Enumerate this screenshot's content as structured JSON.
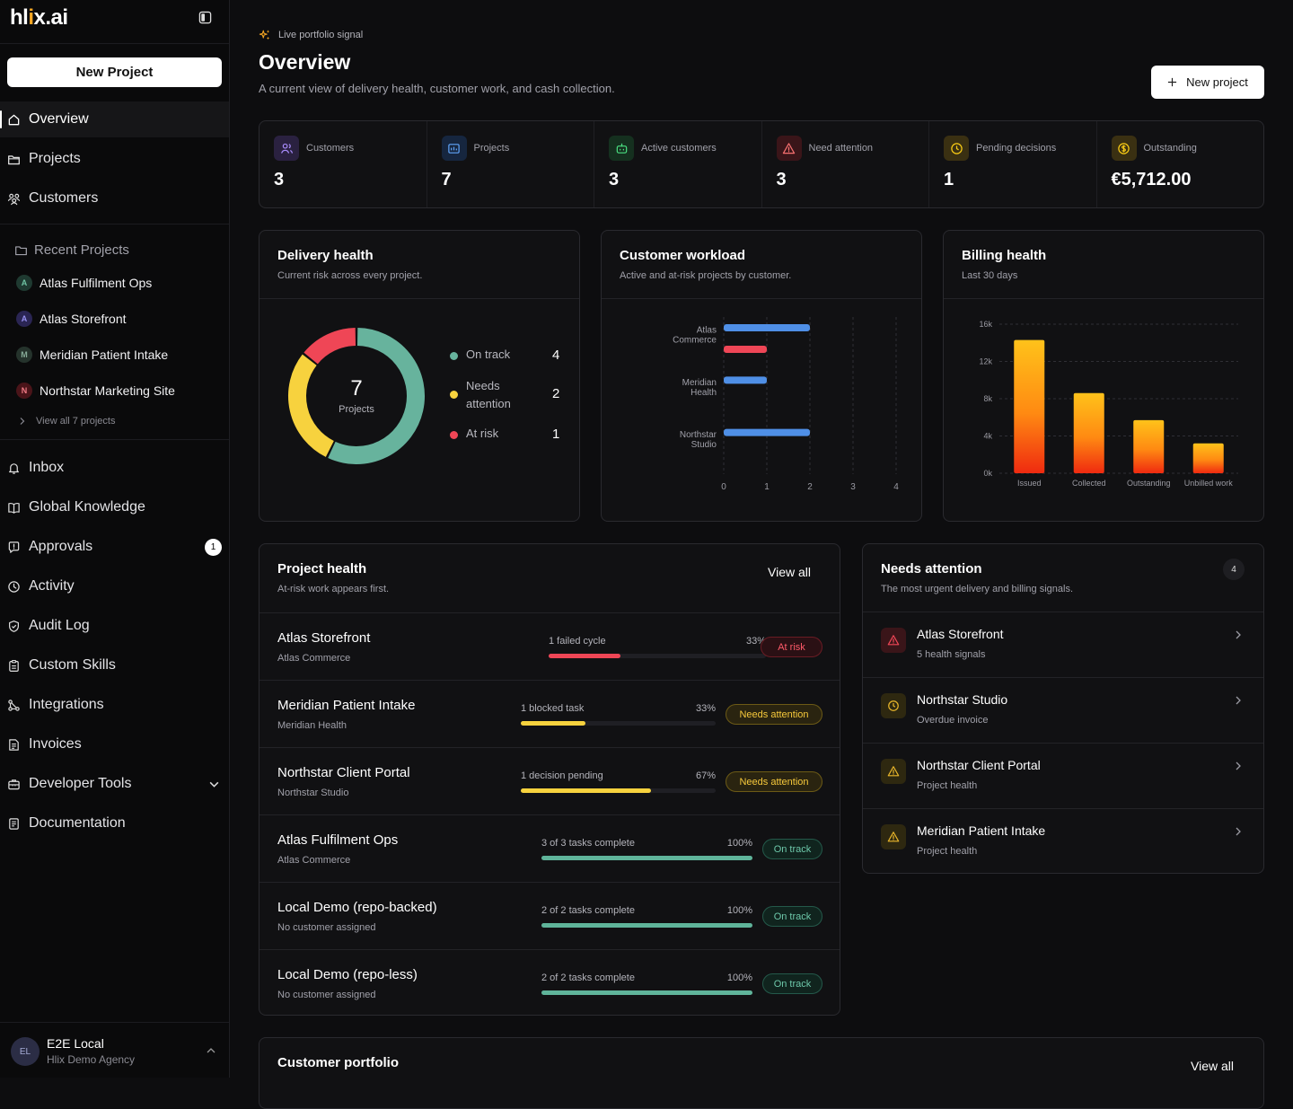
{
  "brand": {
    "logo_pre": "hl",
    "logo_dot": "i",
    "logo_post": "x.ai"
  },
  "sidebar": {
    "new_project_label": "New Project",
    "nav_top": [
      {
        "label": "Overview",
        "icon": "home-icon"
      },
      {
        "label": "Projects",
        "icon": "folder-icon"
      },
      {
        "label": "Customers",
        "icon": "users-icon"
      }
    ],
    "recent_heading": "Recent Projects",
    "recent": [
      {
        "initial": "A",
        "label": "Atlas Fulfilment Ops",
        "color": "#4b8a73"
      },
      {
        "initial": "A",
        "label": "Atlas Storefront",
        "color": "#6d62c9"
      },
      {
        "initial": "M",
        "label": "Meridian Patient Intake",
        "color": "#5d7d6f"
      },
      {
        "initial": "N",
        "label": "Northstar Marketing Site",
        "color": "#c8404b"
      }
    ],
    "view_all_projects": "View all 7 projects",
    "nav_bottom": [
      {
        "label": "Inbox",
        "icon": "bell-icon"
      },
      {
        "label": "Global Knowledge",
        "icon": "book-icon"
      },
      {
        "label": "Approvals",
        "icon": "approval-icon",
        "badge": "1"
      },
      {
        "label": "Activity",
        "icon": "clock-icon"
      },
      {
        "label": "Audit Log",
        "icon": "shield-icon"
      },
      {
        "label": "Custom Skills",
        "icon": "clipboard-icon"
      },
      {
        "label": "Integrations",
        "icon": "integrations-icon"
      },
      {
        "label": "Invoices",
        "icon": "invoice-icon"
      },
      {
        "label": "Developer Tools",
        "icon": "toolbox-icon"
      },
      {
        "label": "Documentation",
        "icon": "document-icon"
      }
    ],
    "user": {
      "initials": "EL",
      "name": "E2E Local",
      "org": "Hlix Demo Agency"
    }
  },
  "header": {
    "live_tag": "Live portfolio signal",
    "title": "Overview",
    "subtitle": "A current view of delivery health, customer work, and cash collection.",
    "new_project_label": "New project"
  },
  "kpis": [
    {
      "label": "Customers",
      "value": "3",
      "icon": "users-icon",
      "color": "#a78bfa"
    },
    {
      "label": "Projects",
      "value": "7",
      "icon": "folder-icon",
      "color": "#60a5fa"
    },
    {
      "label": "Active customers",
      "value": "3",
      "icon": "bot-icon",
      "color": "#4ade80"
    },
    {
      "label": "Need attention",
      "value": "3",
      "icon": "warning-icon",
      "color": "#f87171"
    },
    {
      "label": "Pending decisions",
      "value": "1",
      "icon": "clock-icon",
      "color": "#facc15"
    },
    {
      "label": "Outstanding",
      "value": "€5,712.00",
      "icon": "coin-icon",
      "color": "#facc15"
    }
  ],
  "delivery": {
    "title": "Delivery health",
    "subtitle": "Current risk across every project.",
    "total": "7",
    "center_label": "Projects",
    "segments": [
      {
        "label": "On track",
        "value": 4,
        "color": "#67b39d"
      },
      {
        "label": "Needs attention",
        "value": 2,
        "color": "#f7d23e"
      },
      {
        "label": "At risk",
        "value": 1,
        "color": "#ef4656"
      }
    ]
  },
  "workload": {
    "title": "Customer workload",
    "subtitle": "Active and at-risk projects by customer.",
    "chart_data": {
      "type": "bar",
      "orientation": "horizontal",
      "categories": [
        "Atlas Commerce",
        "Meridian Health",
        "Northstar Studio"
      ],
      "series": [
        {
          "values": [
            2,
            1,
            2
          ],
          "color": "#4f8fe6"
        },
        {
          "values": [
            1,
            0,
            0
          ],
          "color": "#ef4656"
        }
      ],
      "xlim": [
        0,
        4
      ],
      "xticks": [
        "0",
        "1",
        "2",
        "3",
        "4"
      ]
    }
  },
  "billing": {
    "title": "Billing health",
    "subtitle": "Last 30 days",
    "chart_data": {
      "type": "bar",
      "categories": [
        "Issued",
        "Collected",
        "Outstanding",
        "Unbilled work"
      ],
      "values": [
        14300,
        8600,
        5700,
        3200
      ],
      "ylim": [
        0,
        16000
      ],
      "yticks": [
        "0k",
        "4k",
        "8k",
        "12k",
        "16k"
      ]
    }
  },
  "project_health": {
    "title": "Project health",
    "subtitle": "At-risk work appears first.",
    "view_all": "View all",
    "rows": [
      {
        "name": "Atlas Storefront",
        "customer": "Atlas Commerce",
        "detail": "1 failed cycle",
        "pct": "33%",
        "progress": 0.33,
        "status": "At risk",
        "kind": "risk"
      },
      {
        "name": "Meridian Patient Intake",
        "customer": "Meridian Health",
        "detail": "1 blocked task",
        "pct": "33%",
        "progress": 0.33,
        "status": "Needs attention",
        "kind": "warn"
      },
      {
        "name": "Northstar Client Portal",
        "customer": "Northstar Studio",
        "detail": "1 decision pending",
        "pct": "67%",
        "progress": 0.67,
        "status": "Needs attention",
        "kind": "warn"
      },
      {
        "name": "Atlas Fulfilment Ops",
        "customer": "Atlas Commerce",
        "detail": "3 of 3 tasks complete",
        "pct": "100%",
        "progress": 1,
        "status": "On track",
        "kind": "ok"
      },
      {
        "name": "Local Demo (repo-backed)",
        "customer": "No customer assigned",
        "detail": "2 of 2 tasks complete",
        "pct": "100%",
        "progress": 1,
        "status": "On track",
        "kind": "ok"
      },
      {
        "name": "Local Demo (repo-less)",
        "customer": "No customer assigned",
        "detail": "2 of 2 tasks complete",
        "pct": "100%",
        "progress": 1,
        "status": "On track",
        "kind": "ok"
      }
    ]
  },
  "needs_attention": {
    "title": "Needs attention",
    "subtitle": "The most urgent delivery and billing signals.",
    "count": "4",
    "items": [
      {
        "title": "Atlas Storefront",
        "sub": "5 health signals",
        "icon": "warning-icon",
        "kind": "risk"
      },
      {
        "title": "Northstar Studio",
        "sub": "Overdue invoice",
        "icon": "clock-icon",
        "kind": "warn"
      },
      {
        "title": "Northstar Client Portal",
        "sub": "Project health",
        "icon": "warning-icon",
        "kind": "warn"
      },
      {
        "title": "Meridian Patient Intake",
        "sub": "Project health",
        "icon": "warning-icon",
        "kind": "warn"
      }
    ]
  },
  "portfolio": {
    "title": "Customer portfolio",
    "view_all": "View all"
  }
}
